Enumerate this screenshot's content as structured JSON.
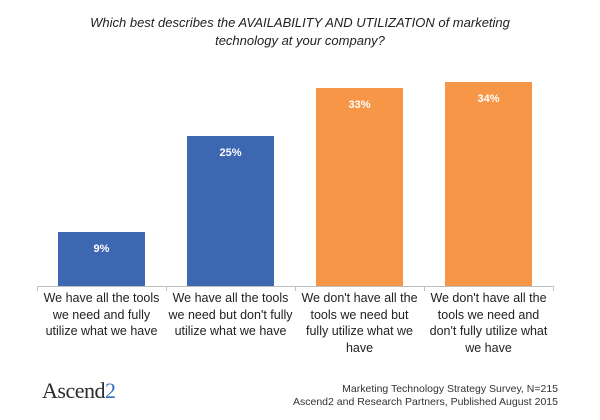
{
  "chart_data": {
    "type": "bar",
    "title": "Which best describes the AVAILABILITY AND UTILIZATION of marketing technology at your company?",
    "title_lines": [
      "Which best describes the AVAILABILITY AND UTILIZATION of marketing",
      "technology at your company?"
    ],
    "categories": [
      "We have all the tools we need and fully utilize what we have",
      "We have all the tools we need but don't fully utilize what we have",
      "We don't have all the tools we need but fully utilize what we have",
      "We don't have all the tools we need and don't fully utilize what we have"
    ],
    "category_lines": [
      [
        "We have all the tools",
        "we need and fully",
        "utilize what we have"
      ],
      [
        "We have all the tools",
        "we need but don't fully",
        "utilize what we have"
      ],
      [
        "We don't have all the",
        "tools we need but",
        "fully utilize what we",
        "have"
      ],
      [
        "We don't have all the",
        "tools we need and",
        "don't fully utilize what",
        "we have"
      ]
    ],
    "values": [
      9,
      25,
      33,
      34
    ],
    "data_labels": [
      "9%",
      "25%",
      "33%",
      "34%"
    ],
    "colors": [
      "#3d67b0",
      "#3d67b0",
      "#f79646",
      "#f79646"
    ],
    "xlabel": "",
    "ylabel": "",
    "ylim": [
      0,
      40
    ],
    "grid": false,
    "legend": "none"
  },
  "footer": {
    "logo_text": "Ascend",
    "logo_accent": "2",
    "source_line1": "Marketing Technology Strategy Survey, N=215",
    "source_line2": "Ascend2 and Research Partners, Published August 2015"
  }
}
